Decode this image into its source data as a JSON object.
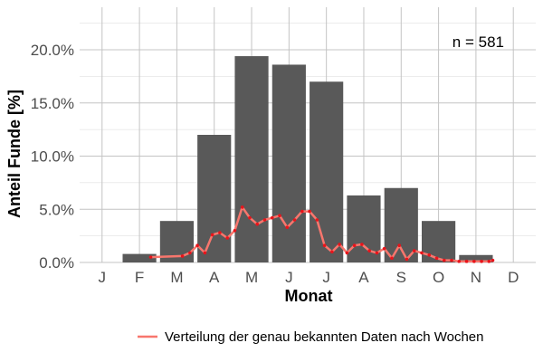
{
  "chart_data": {
    "type": "bar",
    "xlabel": "Monat",
    "ylabel": "Anteil Funde [%]",
    "categories": [
      "J",
      "F",
      "M",
      "A",
      "M",
      "J",
      "J",
      "A",
      "S",
      "O",
      "N",
      "D"
    ],
    "ylim": [
      0,
      0.24
    ],
    "y_ticks": [
      "0.0%",
      "5.0%",
      "10.0%",
      "15.0%",
      "20.0%"
    ],
    "y_tick_values": [
      0,
      0.05,
      0.1,
      0.15,
      0.2
    ],
    "grid": true,
    "bars": {
      "values": [
        0.0,
        0.008,
        0.039,
        0.12,
        0.194,
        0.186,
        0.17,
        0.063,
        0.07,
        0.039,
        0.007,
        0.0
      ],
      "color": "#595959"
    },
    "line_series": {
      "name": "Verteilung der genau bekannten Daten nach Wochen",
      "color": "#f8766d",
      "point_color": "#e8141b",
      "x": [
        2.3,
        3.15,
        3.35,
        3.55,
        3.75,
        3.95,
        4.15,
        4.35,
        4.55,
        4.75,
        4.95,
        5.15,
        5.35,
        5.55,
        5.75,
        5.95,
        6.15,
        6.35,
        6.55,
        6.75,
        6.95,
        7.15,
        7.35,
        7.55,
        7.75,
        7.95,
        8.15,
        8.35,
        8.55,
        8.75,
        8.95,
        9.15,
        9.35,
        9.55,
        9.75,
        9.95,
        10.15,
        10.35,
        10.55,
        10.75,
        10.95,
        11.15,
        11.35,
        11.45
      ],
      "values": [
        0.005,
        0.006,
        0.009,
        0.016,
        0.009,
        0.026,
        0.028,
        0.023,
        0.03,
        0.052,
        0.042,
        0.036,
        0.04,
        0.042,
        0.044,
        0.033,
        0.04,
        0.048,
        0.048,
        0.04,
        0.016,
        0.01,
        0.017,
        0.009,
        0.016,
        0.017,
        0.011,
        0.009,
        0.013,
        0.004,
        0.016,
        0.003,
        0.011,
        0.009,
        0.007,
        0.004,
        0.002,
        0.002,
        0.001,
        0.001,
        0.001,
        0.001,
        0.001,
        0.002
      ]
    },
    "annotation": "n = 581",
    "legend": {
      "placement": "bottom",
      "label": "Verteilung der genau bekannten Daten nach Wochen"
    }
  }
}
